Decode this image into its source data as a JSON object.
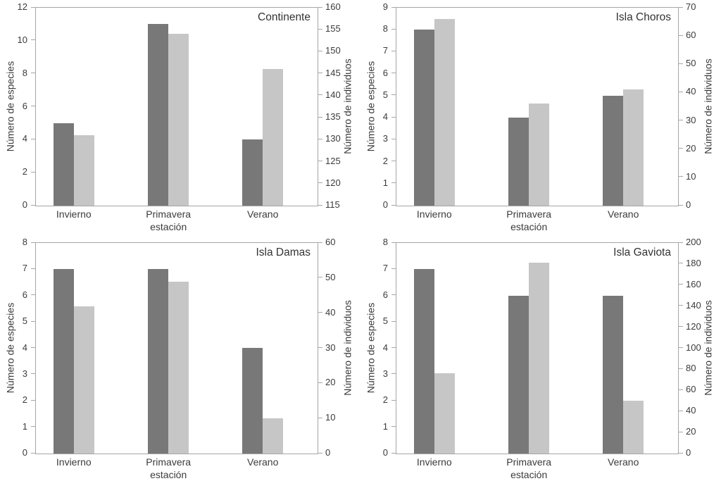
{
  "figure": {
    "background": "#ffffff",
    "bar_dark_color": "#787878",
    "bar_light_color": "#c6c6c6",
    "axis_color": "#a6a6a6",
    "text_color": "#3b3b3b"
  },
  "chart_data": [
    {
      "type": "bar",
      "title": "Continente",
      "categories": [
        "Invierno",
        "Primavera",
        "Verano"
      ],
      "xlabel": "estación",
      "legend": "none",
      "grid": false,
      "left_axis": {
        "label": "Número de especies",
        "min": 0,
        "max": 12,
        "ticks": [
          0,
          2,
          4,
          6,
          8,
          10,
          12
        ]
      },
      "right_axis": {
        "label": "Número de individuos",
        "min": 115,
        "max": 160,
        "ticks": [
          115,
          120,
          125,
          130,
          135,
          140,
          145,
          150,
          155,
          160
        ]
      },
      "series": [
        {
          "name": "Número de especies",
          "axis": "left",
          "color": "#787878",
          "values": [
            5,
            11,
            4
          ]
        },
        {
          "name": "Número de individuos",
          "axis": "right",
          "color": "#c6c6c6",
          "values": [
            131,
            154,
            146
          ]
        }
      ]
    },
    {
      "type": "bar",
      "title": "Isla Choros",
      "categories": [
        "Invierno",
        "Primavera",
        "Verano"
      ],
      "xlabel": "estación",
      "legend": "none",
      "grid": false,
      "left_axis": {
        "label": "Número de especies",
        "min": 0,
        "max": 9,
        "ticks": [
          0,
          1,
          2,
          3,
          4,
          5,
          6,
          7,
          8,
          9
        ]
      },
      "right_axis": {
        "label": "Número de individuos",
        "min": 0,
        "max": 70,
        "ticks": [
          0,
          10,
          20,
          30,
          40,
          50,
          60,
          70
        ]
      },
      "series": [
        {
          "name": "Número de especies",
          "axis": "left",
          "color": "#787878",
          "values": [
            8,
            4,
            5
          ]
        },
        {
          "name": "Número de individuos",
          "axis": "right",
          "color": "#c6c6c6",
          "values": [
            66,
            36,
            41
          ]
        }
      ]
    },
    {
      "type": "bar",
      "title": "Isla Damas",
      "categories": [
        "Invierno",
        "Primavera",
        "Verano"
      ],
      "xlabel": "estación",
      "legend": "none",
      "grid": false,
      "left_axis": {
        "label": "Número de especies",
        "min": 0,
        "max": 8,
        "ticks": [
          0,
          1,
          2,
          3,
          4,
          5,
          6,
          7,
          8
        ]
      },
      "right_axis": {
        "label": "Número de individuos",
        "min": 0,
        "max": 60,
        "ticks": [
          0,
          10,
          20,
          30,
          40,
          50,
          60
        ]
      },
      "series": [
        {
          "name": "Número de especies",
          "axis": "left",
          "color": "#787878",
          "values": [
            7,
            7,
            4
          ]
        },
        {
          "name": "Número de individuos",
          "axis": "right",
          "color": "#c6c6c6",
          "values": [
            42,
            49,
            10
          ]
        }
      ]
    },
    {
      "type": "bar",
      "title": "Isla Gaviota",
      "categories": [
        "Invierno",
        "Primavera",
        "Verano"
      ],
      "xlabel": "estación",
      "legend": "none",
      "grid": false,
      "left_axis": {
        "label": "Número de especies",
        "min": 0,
        "max": 8,
        "ticks": [
          0,
          1,
          2,
          3,
          4,
          5,
          6,
          7,
          8
        ]
      },
      "right_axis": {
        "label": "Número de individuos",
        "min": 0,
        "max": 200,
        "ticks": [
          0,
          20,
          40,
          60,
          80,
          100,
          120,
          140,
          160,
          180,
          200
        ]
      },
      "series": [
        {
          "name": "Número de especies",
          "axis": "left",
          "color": "#787878",
          "values": [
            7,
            6,
            6
          ]
        },
        {
          "name": "Número de individuos",
          "axis": "right",
          "color": "#c6c6c6",
          "values": [
            76,
            181,
            50
          ]
        }
      ]
    }
  ]
}
